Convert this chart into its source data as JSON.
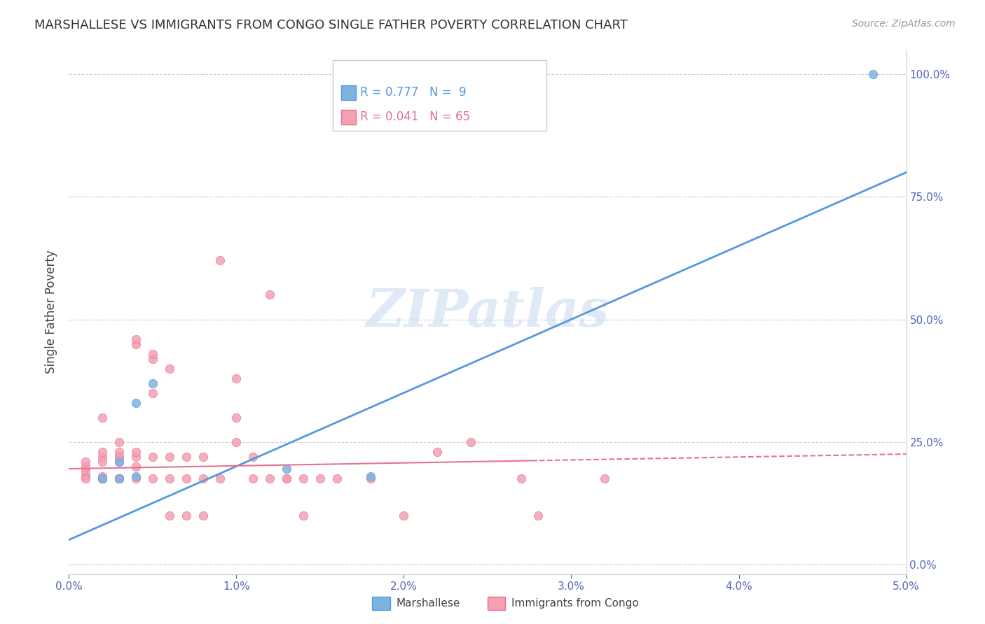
{
  "title": "MARSHALLESE VS IMMIGRANTS FROM CONGO SINGLE FATHER POVERTY CORRELATION CHART",
  "source": "Source: ZipAtlas.com",
  "ylabel": "Single Father Poverty",
  "xlim": [
    0,
    0.05
  ],
  "ylim": [
    -0.02,
    1.05
  ],
  "xticks": [
    0,
    0.01,
    0.02,
    0.03,
    0.04,
    0.05
  ],
  "xtick_labels": [
    "0.0%",
    "1.0%",
    "2.0%",
    "3.0%",
    "4.0%",
    "5.0%"
  ],
  "ytick_positions": [
    0.0,
    0.25,
    0.5,
    0.75,
    1.0
  ],
  "ytick_labels": [
    "0.0%",
    "25.0%",
    "50.0%",
    "75.0%",
    "100.0%"
  ],
  "marshallese_color": "#7EB3E0",
  "congo_color": "#F4A0B0",
  "marshallese_edge": "#5599DD",
  "congo_edge": "#E87090",
  "marshallese_R": 0.777,
  "marshallese_N": 9,
  "congo_R": 0.041,
  "congo_N": 65,
  "marshallese_x": [
    0.002,
    0.003,
    0.003,
    0.004,
    0.004,
    0.005,
    0.013,
    0.018,
    0.048
  ],
  "marshallese_y": [
    0.175,
    0.21,
    0.175,
    0.33,
    0.18,
    0.37,
    0.195,
    0.18,
    1.0
  ],
  "congo_x": [
    0.001,
    0.001,
    0.001,
    0.001,
    0.001,
    0.002,
    0.002,
    0.002,
    0.002,
    0.002,
    0.002,
    0.002,
    0.002,
    0.003,
    0.003,
    0.003,
    0.003,
    0.003,
    0.003,
    0.003,
    0.003,
    0.003,
    0.004,
    0.004,
    0.004,
    0.004,
    0.004,
    0.004,
    0.005,
    0.005,
    0.005,
    0.005,
    0.005,
    0.006,
    0.006,
    0.006,
    0.006,
    0.007,
    0.007,
    0.007,
    0.008,
    0.008,
    0.008,
    0.009,
    0.009,
    0.01,
    0.01,
    0.01,
    0.011,
    0.011,
    0.012,
    0.012,
    0.013,
    0.013,
    0.014,
    0.014,
    0.015,
    0.016,
    0.018,
    0.02,
    0.022,
    0.024,
    0.027,
    0.028,
    0.032
  ],
  "congo_y": [
    0.18,
    0.19,
    0.2,
    0.21,
    0.175,
    0.22,
    0.23,
    0.175,
    0.175,
    0.175,
    0.21,
    0.3,
    0.18,
    0.21,
    0.22,
    0.175,
    0.23,
    0.175,
    0.175,
    0.22,
    0.25,
    0.175,
    0.2,
    0.45,
    0.46,
    0.22,
    0.175,
    0.23,
    0.42,
    0.43,
    0.35,
    0.175,
    0.22,
    0.4,
    0.175,
    0.22,
    0.1,
    0.175,
    0.22,
    0.1,
    0.175,
    0.22,
    0.1,
    0.62,
    0.175,
    0.38,
    0.3,
    0.25,
    0.175,
    0.22,
    0.55,
    0.175,
    0.175,
    0.175,
    0.175,
    0.1,
    0.175,
    0.175,
    0.175,
    0.1,
    0.23,
    0.25,
    0.175,
    0.1,
    0.175
  ],
  "watermark_text": "ZIPatlas",
  "background_color": "#ffffff",
  "grid_color": "#d0d0d0",
  "axis_color": "#5566bb",
  "blue_line_color": "#5599DD",
  "pink_line_color": "#E87090",
  "blue_line_slope": 15.0,
  "blue_line_intercept": 0.05,
  "pink_line_slope": 0.6,
  "pink_line_intercept": 0.195,
  "pink_line_split": 0.028
}
